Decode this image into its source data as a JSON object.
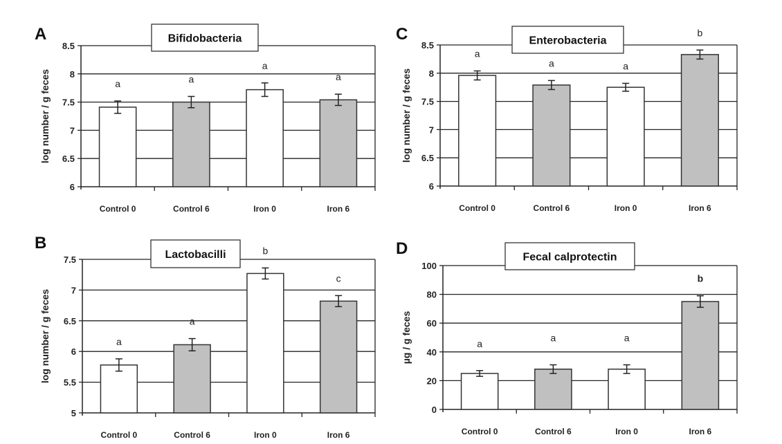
{
  "chart_data": [
    {
      "type": "bar",
      "panel": "A",
      "title": "Bifidobacteria",
      "ylabel": "log number / g feces",
      "xlabel": "",
      "categories": [
        "Control 0",
        "Control 6",
        "Iron 0",
        "Iron 6"
      ],
      "values": [
        7.41,
        7.5,
        7.72,
        7.54
      ],
      "errors": [
        0.11,
        0.1,
        0.12,
        0.1
      ],
      "significance": [
        "a",
        "a",
        "a",
        "a"
      ],
      "bar_colors": [
        "#ffffff",
        "#c0c0c0",
        "#ffffff",
        "#c0c0c0"
      ],
      "ylim": [
        6,
        8.5
      ],
      "yticks": [
        "6",
        "6.5",
        "7",
        "7.5",
        "8",
        "8.5"
      ],
      "grid": true
    },
    {
      "type": "bar",
      "panel": "B",
      "title": "Lactobacilli",
      "ylabel": "log number / g feces",
      "xlabel": "",
      "categories": [
        "Control 0",
        "Control 6",
        "Iron 0",
        "Iron 6"
      ],
      "values": [
        5.78,
        6.11,
        7.27,
        6.82
      ],
      "errors": [
        0.1,
        0.1,
        0.09,
        0.09
      ],
      "significance": [
        "a",
        "a",
        "b",
        "c"
      ],
      "bar_colors": [
        "#ffffff",
        "#c0c0c0",
        "#ffffff",
        "#c0c0c0"
      ],
      "ylim": [
        5,
        7.5
      ],
      "yticks": [
        "5",
        "5.5",
        "6",
        "6.5",
        "7",
        "7.5"
      ],
      "grid": true
    },
    {
      "type": "bar",
      "panel": "C",
      "title": "Enterobacteria",
      "ylabel": "log number / g feces",
      "xlabel": "",
      "categories": [
        "Control 0",
        "Control 6",
        "Iron 0",
        "Iron 6"
      ],
      "values": [
        7.96,
        7.79,
        7.75,
        8.33
      ],
      "errors": [
        0.08,
        0.08,
        0.07,
        0.08
      ],
      "significance": [
        "a",
        "a",
        "a",
        "b"
      ],
      "bar_colors": [
        "#ffffff",
        "#c0c0c0",
        "#ffffff",
        "#c0c0c0"
      ],
      "ylim": [
        6,
        8.5
      ],
      "yticks": [
        "6",
        "6.5",
        "7",
        "7.5",
        "8",
        "8.5"
      ],
      "grid": true
    },
    {
      "type": "bar",
      "panel": "D",
      "title": "Fecal calprotectin",
      "ylabel": "µg / g feces",
      "xlabel": "",
      "categories": [
        "Control 0",
        "Control 6",
        "Iron 0",
        "Iron 6"
      ],
      "values": [
        25,
        28,
        28,
        75
      ],
      "errors": [
        2,
        3,
        3,
        4
      ],
      "significance": [
        "a",
        "a",
        "a",
        "b"
      ],
      "bar_colors": [
        "#ffffff",
        "#c0c0c0",
        "#ffffff",
        "#c0c0c0"
      ],
      "ylim": [
        0,
        100
      ],
      "yticks": [
        "0",
        "20",
        "40",
        "60",
        "80",
        "100"
      ],
      "grid": true
    }
  ]
}
